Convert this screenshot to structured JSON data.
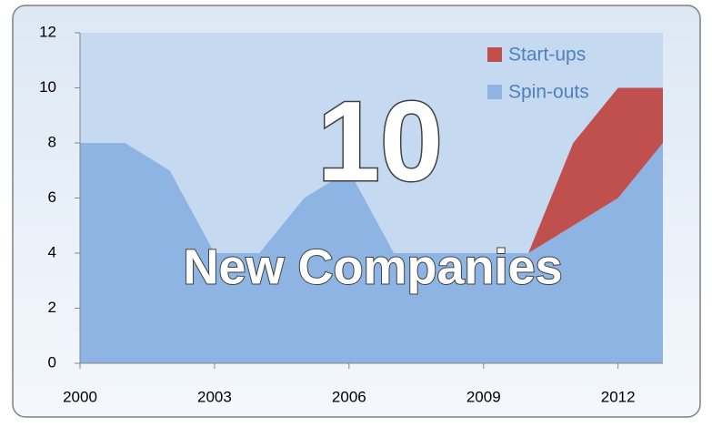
{
  "chart_data": {
    "type": "stacked_area",
    "annotations": [
      "10",
      "New Companies"
    ],
    "x": [
      2000,
      2001,
      2002,
      2003,
      2004,
      2005,
      2006,
      2007,
      2008,
      2009,
      2010,
      2011,
      2012,
      2013
    ],
    "series": [
      {
        "name": "Spin-outs",
        "color": "#8db4e2",
        "values": [
          8,
          8,
          7,
          4,
          4,
          6,
          7,
          4,
          4,
          4,
          4,
          5,
          6,
          8
        ]
      },
      {
        "name": "Start-ups",
        "color": "#c0504d",
        "values": [
          0,
          0,
          0,
          0,
          0,
          0,
          0,
          0,
          0,
          0,
          0,
          3,
          4,
          2
        ]
      }
    ],
    "xlim": [
      2000,
      2013
    ],
    "xticks": [
      2000,
      2003,
      2006,
      2009,
      2012
    ],
    "ylim": [
      0,
      12
    ],
    "yticks": [
      0,
      2,
      4,
      6,
      8,
      10,
      12
    ],
    "legend": "top-right"
  }
}
